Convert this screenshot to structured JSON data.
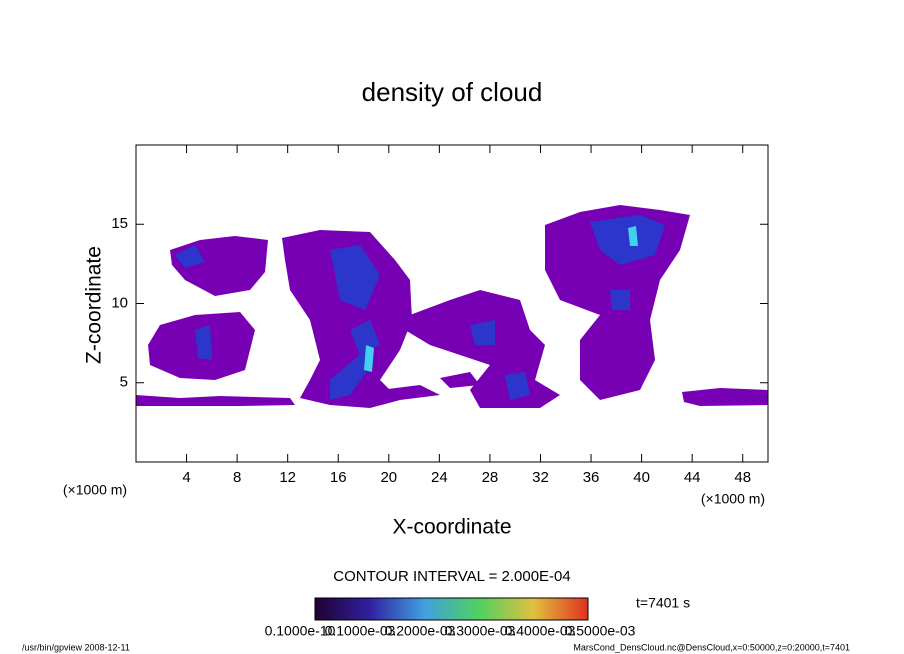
{
  "chart_data": {
    "type": "contour",
    "title": "density of cloud",
    "x_label": "X-coordinate",
    "y_label": "Z-coordinate",
    "x_unit": "(×1000 m)",
    "y_unit": "(×1000 m)",
    "xlim": [
      0,
      50
    ],
    "ylim": [
      0,
      20
    ],
    "xticks": [
      4,
      8,
      12,
      16,
      20,
      24,
      28,
      32,
      36,
      40,
      44,
      48
    ],
    "yticks": [
      5,
      10,
      15
    ],
    "contour_interval": "CONTOUR INTERVAL = 2.000E-04",
    "time_label": "t=7401 s",
    "colorbar_labels": [
      "0.1000e-10",
      "0.1000e-03",
      "0.2000e-03",
      "0.3000e-03",
      "0.4000e-03",
      "0.5000e-03"
    ],
    "footer_left": "/usr/bin/gpview   2008-12-11",
    "footer_right": "MarsCond_DensCloud.nc@DensCloud,x=0:50000,z=0:20000,t=7401"
  }
}
